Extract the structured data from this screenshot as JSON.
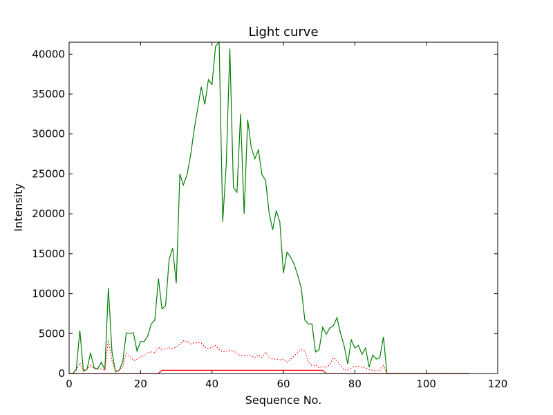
{
  "chart_data": {
    "type": "line",
    "title": "Light curve",
    "xlabel": "Sequence No.",
    "ylabel": "Intensity",
    "xlim": [
      0,
      120
    ],
    "ylim": [
      0,
      41500
    ],
    "xticks": [
      0,
      20,
      40,
      60,
      80,
      100,
      120
    ],
    "yticks": [
      0,
      5000,
      10000,
      15000,
      20000,
      25000,
      30000,
      35000,
      40000
    ],
    "grid": false,
    "legend": "none",
    "series": [
      {
        "color": "#008000",
        "style": "solid",
        "x": [
          0,
          1,
          2,
          3,
          4,
          5,
          6,
          7,
          8,
          9,
          10,
          11,
          12,
          13,
          14,
          15,
          16,
          17,
          18,
          19,
          20,
          21,
          22,
          23,
          24,
          25,
          26,
          27,
          28,
          29,
          30,
          31,
          32,
          33,
          34,
          35,
          36,
          37,
          38,
          39,
          40,
          41,
          42,
          43,
          44,
          45,
          46,
          47,
          48,
          49,
          50,
          51,
          52,
          53,
          54,
          55,
          56,
          57,
          58,
          59,
          60,
          61,
          62,
          63,
          64,
          65,
          66,
          67,
          68,
          69,
          70,
          71,
          72,
          73,
          74,
          75,
          76,
          77,
          78,
          79,
          80,
          81,
          82,
          83,
          84,
          85,
          86,
          87,
          88,
          89,
          90,
          95,
          100,
          105,
          110,
          112
        ],
        "y": [
          0,
          0,
          500,
          5400,
          300,
          500,
          2600,
          700,
          600,
          1400,
          500,
          10700,
          2700,
          200,
          400,
          1400,
          5100,
          5000,
          5100,
          2800,
          4000,
          4000,
          4700,
          6200,
          6700,
          11900,
          8100,
          8500,
          14300,
          15700,
          11300,
          25000,
          23600,
          24900,
          27300,
          30500,
          33200,
          35900,
          33700,
          36800,
          36200,
          41000,
          41500,
          19000,
          26200,
          40700,
          23300,
          22700,
          32500,
          20000,
          31800,
          28300,
          26900,
          28000,
          24900,
          24200,
          20100,
          18000,
          20400,
          19000,
          12600,
          15200,
          14600,
          13700,
          12300,
          10700,
          6700,
          6200,
          6200,
          2700,
          3000,
          5800,
          4900,
          5700,
          6000,
          7000,
          5000,
          3500,
          1200,
          4200,
          3200,
          3500,
          2400,
          3200,
          800,
          2300,
          1800,
          2000,
          4600,
          0,
          0,
          0,
          0,
          0,
          0,
          0
        ]
      },
      {
        "color": "#ff0000",
        "style": "dotted",
        "x": [
          0,
          1,
          2,
          3,
          4,
          5,
          6,
          7,
          8,
          9,
          10,
          11,
          12,
          13,
          14,
          15,
          16,
          17,
          18,
          19,
          20,
          21,
          22,
          23,
          24,
          25,
          26,
          27,
          28,
          29,
          30,
          31,
          32,
          33,
          34,
          35,
          36,
          37,
          38,
          39,
          40,
          41,
          42,
          43,
          44,
          45,
          46,
          47,
          48,
          49,
          50,
          51,
          52,
          53,
          54,
          55,
          56,
          57,
          58,
          59,
          60,
          61,
          62,
          63,
          64,
          65,
          66,
          67,
          68,
          69,
          70,
          71,
          72,
          73,
          74,
          75,
          76,
          77,
          78,
          79,
          80,
          81,
          82,
          83,
          84,
          85,
          86,
          87,
          88,
          89,
          90,
          95,
          100,
          105,
          110,
          112
        ],
        "y": [
          0,
          0,
          400,
          1300,
          400,
          500,
          1000,
          600,
          500,
          600,
          400,
          4300,
          1600,
          300,
          400,
          900,
          2500,
          2200,
          1600,
          1800,
          2100,
          2300,
          2600,
          2700,
          2600,
          3300,
          3000,
          3100,
          3200,
          3100,
          3300,
          3700,
          4100,
          4000,
          3700,
          3800,
          3900,
          3800,
          3300,
          3100,
          3300,
          3500,
          3000,
          2700,
          2800,
          2900,
          2800,
          2500,
          2200,
          2300,
          2300,
          2200,
          2000,
          2300,
          2000,
          2700,
          2000,
          1800,
          1800,
          1700,
          1800,
          1400,
          1800,
          2200,
          2600,
          3000,
          2800,
          1400,
          1000,
          1100,
          700,
          900,
          800,
          1100,
          2000,
          1600,
          1000,
          500,
          400,
          700,
          900,
          900,
          800,
          700,
          500,
          400,
          300,
          400,
          1000,
          0,
          0,
          0,
          0,
          0,
          0,
          0
        ]
      },
      {
        "color": "#ff0000",
        "style": "solid",
        "x": [
          0,
          10,
          20,
          24,
          25,
          26,
          27,
          70,
          71,
          72,
          80,
          90,
          100,
          110,
          112
        ],
        "y": [
          0,
          0,
          0,
          0,
          0,
          400,
          400,
          400,
          400,
          0,
          0,
          0,
          0,
          0,
          0
        ]
      }
    ]
  }
}
